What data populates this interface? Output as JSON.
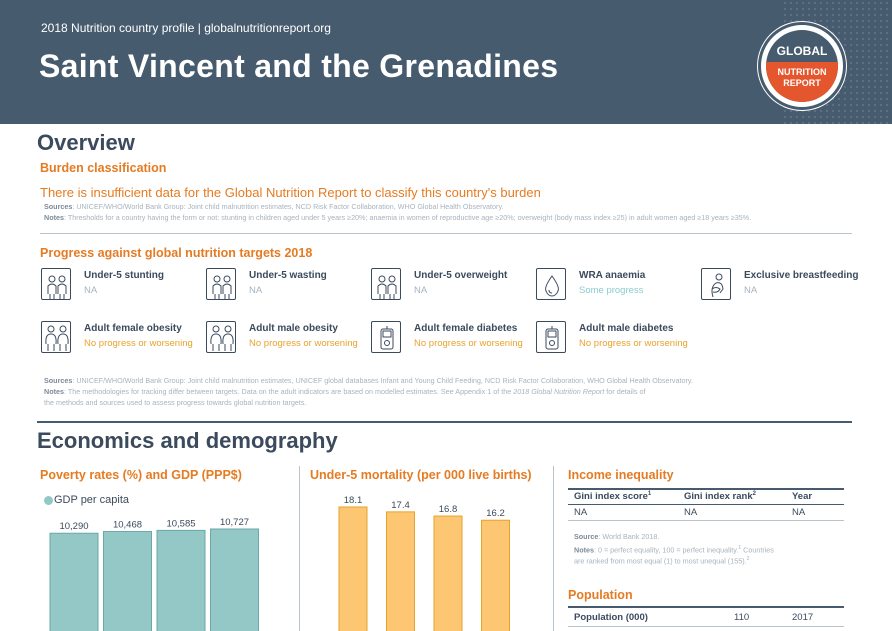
{
  "header": {
    "subtitle": "2018 Nutrition country profile  |  globalnutritionreport.org",
    "title": "Saint Vincent and the Grenadines",
    "logo_line1": "GLOBAL",
    "logo_line2": "NUTRITION",
    "logo_line3": "REPORT"
  },
  "overview": {
    "heading": "Overview",
    "burden_heading": "Burden classification",
    "burden_text": "There is insufficient data for the Global Nutrition Report to classify this country's burden",
    "src_label": "Sources",
    "src_text": ": UNICEF/WHO/World Bank Group: Joint child malnutrition estimates, NCD Risk Factor Collaboration, WHO Global Health Observatory.",
    "notes_label": "Notes",
    "notes_text": ": Thresholds for a country having the form or not: stunting in children aged under 5 years ≥20%; anaemia in women of reproductive age ≥20%; overweight (body mass index ≥25) in adult women aged ≥18 years ≥35%."
  },
  "progress": {
    "heading": "Progress against global nutrition targets 2018",
    "targets": [
      {
        "name": "Under-5 stunting",
        "status": "NA",
        "icon": "children-icon"
      },
      {
        "name": "Under-5 wasting",
        "status": "NA",
        "icon": "children-icon"
      },
      {
        "name": "Under-5 overweight",
        "status": "NA",
        "icon": "children-icon"
      },
      {
        "name": "WRA anaemia",
        "status": "Some progress",
        "icon": "blood-drop-icon"
      },
      {
        "name": "Exclusive breastfeeding",
        "status": "NA",
        "icon": "breastfeeding-icon"
      },
      {
        "name": "Adult female obesity",
        "status": "No progress or worsening",
        "icon": "adults-icon"
      },
      {
        "name": "Adult male obesity",
        "status": "No progress or worsening",
        "icon": "adults-icon"
      },
      {
        "name": "Adult female diabetes",
        "status": "No progress or worsening",
        "icon": "glucometer-icon"
      },
      {
        "name": "Adult male diabetes",
        "status": "No progress or worsening",
        "icon": "glucometer-icon"
      }
    ],
    "src_label": "Sources",
    "src_text": ": UNICEF/WHO/World Bank Group: Joint child malnutrition estimates, UNICEF global databases Infant and Young Child Feeding, NCD Risk Factor Collaboration, WHO Global Health Observatory.",
    "notes_label": "Notes",
    "notes_text1": ": The methodologies for tracking differ between targets. Data on the adult indicators are based on modelled estimates. See Appendix 1 of the ",
    "notes_italic": "2018 Global Nutrition Report",
    "notes_text2": " for details of",
    "notes_text3": "the methods and sources used to assess progress towards global nutrition targets."
  },
  "economics": {
    "heading": "Economics and demography",
    "poverty_heading": "Poverty rates (%) and GDP (PPP$)",
    "mortality_heading": "Under-5 mortality (per 000 live births)",
    "income_heading": "Income inequality",
    "income_cols": [
      "Gini index score",
      "Gini index rank",
      "Year"
    ],
    "income_sups": [
      "1",
      "2",
      ""
    ],
    "income_vals": [
      "NA",
      "NA",
      "NA"
    ],
    "income_src_label": "Source",
    "income_src_text": ": World Bank 2018.",
    "income_notes_label": "Notes",
    "income_notes_text": ": 0 = perfect equality, 100 = perfect inequality.",
    "income_notes_sup1": "1",
    "income_notes_text2": " Countries",
    "income_notes_text3": "are ranked from most equal (1) to most unequal (155).",
    "income_notes_sup2": "2",
    "population_heading": "Population",
    "population_label": "Population (000)",
    "population_value": "110",
    "population_year": "2017"
  },
  "colors": {
    "header": "#475b6e",
    "orange": "#e57b22",
    "teal": "#93c8c6",
    "yellow": "#fdc672"
  },
  "chart_data": [
    {
      "type": "bar",
      "title": "Poverty rates (%) and GDP (PPP$)",
      "series": [
        {
          "name": "GDP per capita",
          "values": [
            10290,
            10468,
            10585,
            10727
          ]
        }
      ],
      "labels": [
        "10,290",
        "10,468",
        "10,585",
        "10,727"
      ]
    },
    {
      "type": "bar",
      "title": "Under-5 mortality (per 000 live births)",
      "series": [
        {
          "name": "",
          "values": [
            18.1,
            17.4,
            16.8,
            16.2
          ]
        }
      ],
      "labels": [
        "18.1",
        "17.4",
        "16.8",
        "16.2"
      ]
    }
  ]
}
